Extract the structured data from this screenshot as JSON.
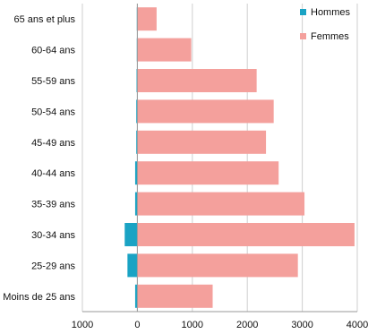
{
  "chart_data": {
    "type": "bar",
    "orientation": "horizontal",
    "categories": [
      "65 ans et plus",
      "60-64 ans",
      "55-59 ans",
      "50-54 ans",
      "45-49 ans",
      "40-44 ans",
      "35-39 ans",
      "30-34 ans",
      "25-29 ans",
      "Moins de 25 ans"
    ],
    "series": [
      {
        "name": "Hommes",
        "color": "#1aa3c4",
        "values": [
          -10,
          -10,
          -15,
          -20,
          -20,
          -40,
          -40,
          -230,
          -180,
          -40
        ]
      },
      {
        "name": "Femmes",
        "color": "#f4a09c",
        "values": [
          350,
          980,
          2170,
          2480,
          2340,
          2570,
          3040,
          3950,
          2920,
          1370
        ]
      }
    ],
    "xlim": [
      -1000,
      4000
    ],
    "xticks": [
      -1000,
      0,
      1000,
      2000,
      3000,
      4000
    ],
    "xtick_labels": [
      "1000",
      "0",
      "1000",
      "2000",
      "3000",
      "4000"
    ],
    "grid": "vertical",
    "legend_position": "top-right",
    "title": "",
    "xlabel": "",
    "ylabel": ""
  }
}
